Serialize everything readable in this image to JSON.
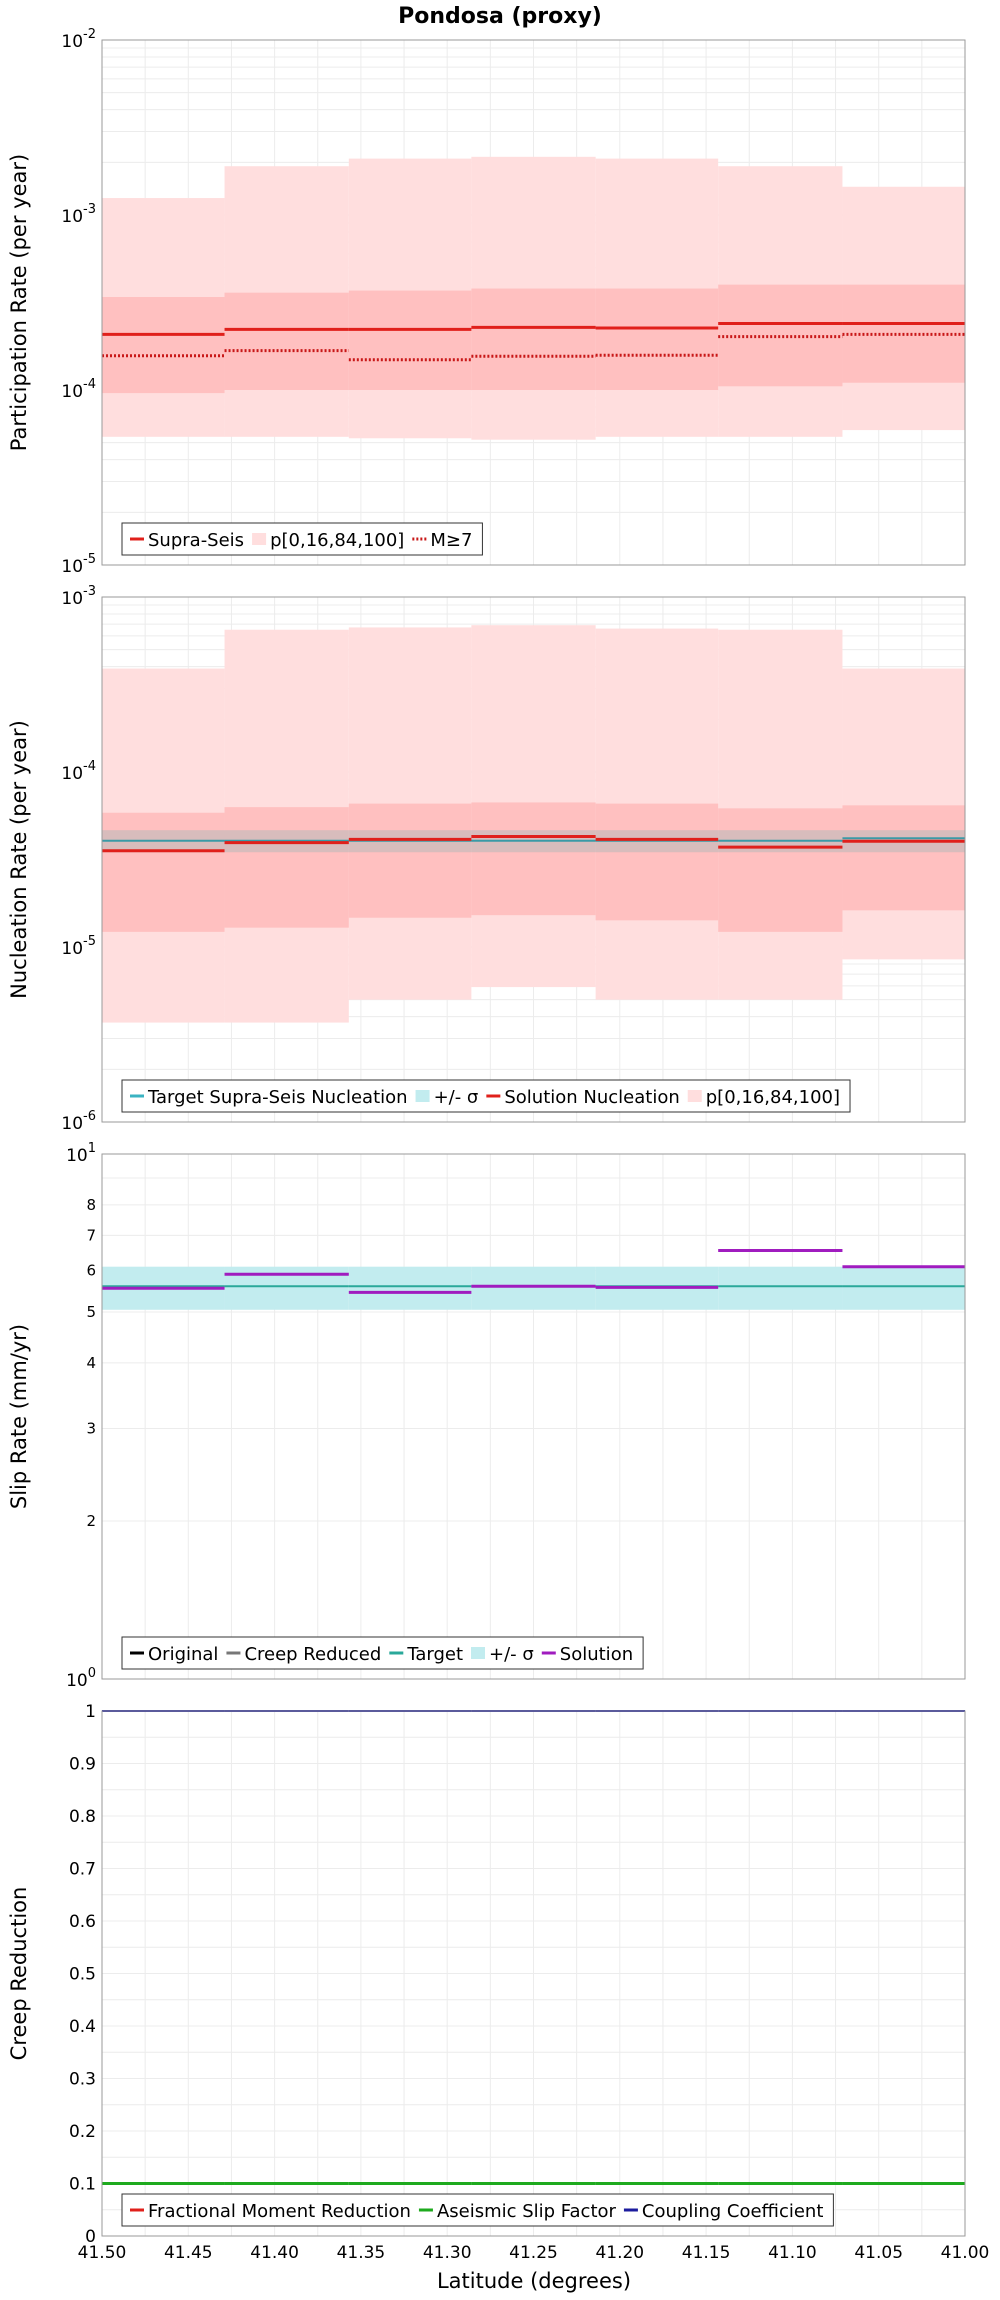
{
  "title": "Pondosa (proxy)",
  "xlabel": "Latitude (degrees)",
  "chart_data": [
    {
      "type": "line",
      "id": "participation",
      "ylabel": "Participation Rate (per year)",
      "yscale": "log",
      "ylim": [
        1e-05,
        0.01
      ],
      "y_ticks": [
        {
          "base": "10",
          "exp": "-5",
          "value": 1e-05
        },
        {
          "base": "10",
          "exp": "-4",
          "value": 0.0001
        },
        {
          "base": "10",
          "exp": "-3",
          "value": 0.001
        },
        {
          "base": "10",
          "exp": "-2",
          "value": 0.01
        }
      ],
      "xlim": [
        41.5,
        41.0
      ],
      "x_edges": [
        41.5,
        41.429,
        41.357,
        41.286,
        41.214,
        41.143,
        41.071,
        41.0
      ],
      "bands": [
        {
          "name": "p[0,16,84,100]",
          "color": "#ffdede",
          "lower": [
            5.4e-05,
            5.4e-05,
            5.3e-05,
            5.2e-05,
            5.4e-05,
            5.4e-05,
            5.9e-05
          ],
          "upper": [
            0.00125,
            0.0019,
            0.0021,
            0.00215,
            0.0021,
            0.0019,
            0.00145
          ]
        },
        {
          "name": "",
          "color": "#ffc0c0",
          "lower": [
            9.6e-05,
            0.0001,
            0.0001,
            0.0001,
            0.0001,
            0.000105,
            0.00011
          ],
          "upper": [
            0.00034,
            0.00036,
            0.00037,
            0.00038,
            0.00038,
            0.0004,
            0.0004
          ]
        }
      ],
      "series": [
        {
          "name": "Supra-Seis",
          "color": "#e0201b",
          "style": "solid",
          "values": [
            0.000208,
            0.000222,
            0.000222,
            0.000228,
            0.000226,
            0.00024,
            0.00024
          ]
        },
        {
          "name": "M≥7",
          "color": "#c81818",
          "style": "dotted",
          "values": [
            0.000157,
            0.000168,
            0.000149,
            0.000156,
            0.000158,
            0.000202,
            0.000208
          ]
        }
      ],
      "legend": [
        {
          "label": "Supra-Seis",
          "kind": "line",
          "color": "#e0201b",
          "style": "solid"
        },
        {
          "label": "p[0,16,84,100]",
          "kind": "box",
          "color": "#ffdede"
        },
        {
          "label": "M≥7",
          "kind": "line",
          "color": "#c81818",
          "style": "dotted"
        }
      ]
    },
    {
      "type": "line",
      "id": "nucleation",
      "ylabel": "Nucleation Rate (per year)",
      "yscale": "log",
      "ylim": [
        1e-06,
        0.001
      ],
      "y_ticks": [
        {
          "base": "10",
          "exp": "-6",
          "value": 1e-06
        },
        {
          "base": "10",
          "exp": "-5",
          "value": 1e-05
        },
        {
          "base": "10",
          "exp": "-4",
          "value": 0.0001
        },
        {
          "base": "10",
          "exp": "-3",
          "value": 0.001
        }
      ],
      "xlim": [
        41.5,
        41.0
      ],
      "x_edges": [
        41.5,
        41.429,
        41.357,
        41.286,
        41.214,
        41.143,
        41.071,
        41.0
      ],
      "bands": [
        {
          "name": "p[0,16,84,100]",
          "color": "#ffdede",
          "lower": [
            3.7e-06,
            3.7e-06,
            5e-06,
            5.9e-06,
            5e-06,
            5e-06,
            8.5e-06
          ],
          "upper": [
            0.00039,
            0.00065,
            0.00067,
            0.00069,
            0.00066,
            0.00065,
            0.00039
          ]
        },
        {
          "name": "",
          "color": "#ffc0c0",
          "lower": [
            1.22e-05,
            1.29e-05,
            1.47e-05,
            1.52e-05,
            1.42e-05,
            1.22e-05,
            1.62e-05
          ],
          "upper": [
            5.85e-05,
            6.3e-05,
            6.6e-05,
            6.7e-05,
            6.6e-05,
            6.2e-05,
            6.45e-05
          ]
        },
        {
          "name": "+/- σ",
          "color": "#b8b8b8",
          "opacity": 0.55,
          "lower": [
            3.48e-05,
            3.48e-05,
            3.48e-05,
            3.48e-05,
            3.48e-05,
            3.48e-05,
            3.48e-05
          ],
          "upper": [
            4.65e-05,
            4.65e-05,
            4.65e-05,
            4.65e-05,
            4.65e-05,
            4.65e-05,
            4.65e-05
          ]
        }
      ],
      "series": [
        {
          "name": "Target Supra-Seis Nucleation",
          "color": "#3a9aa6",
          "style": "solid",
          "width": 2,
          "values": [
            4.05e-05,
            4.05e-05,
            4.05e-05,
            4.05e-05,
            4.05e-05,
            4.05e-05,
            4.18e-05
          ]
        },
        {
          "name": "Solution Nucleation",
          "color": "#e0201b",
          "style": "solid",
          "width": 3,
          "values": [
            3.55e-05,
            3.95e-05,
            4.12e-05,
            4.28e-05,
            4.12e-05,
            3.72e-05,
            4.02e-05
          ]
        }
      ],
      "legend": [
        {
          "label": "Target Supra-Seis Nucleation",
          "kind": "line",
          "color": "#3ab3c2",
          "style": "solid"
        },
        {
          "label": "+/- σ",
          "kind": "box",
          "color": "#c2ecef"
        },
        {
          "label": "Solution Nucleation",
          "kind": "line",
          "color": "#e0201b",
          "style": "solid"
        },
        {
          "label": "p[0,16,84,100]",
          "kind": "box",
          "color": "#ffdede"
        }
      ]
    },
    {
      "type": "line",
      "id": "sliprate",
      "ylabel": "Slip Rate (mm/yr)",
      "yscale": "log",
      "ylim": [
        1,
        10
      ],
      "y_ticks": [
        {
          "base": "10",
          "exp": "1",
          "value": 10
        },
        {
          "base": "10",
          "exp": "0",
          "value": 1
        }
      ],
      "y_minor_labels": [
        {
          "label": "8",
          "value": 8
        },
        {
          "label": "7",
          "value": 7
        },
        {
          "label": "6",
          "value": 6
        },
        {
          "label": "5",
          "value": 5
        },
        {
          "label": "4",
          "value": 4
        },
        {
          "label": "3",
          "value": 3
        },
        {
          "label": "2",
          "value": 2
        }
      ],
      "xlim": [
        41.5,
        41.0
      ],
      "x_edges": [
        41.5,
        41.429,
        41.357,
        41.286,
        41.214,
        41.143,
        41.071,
        41.0
      ],
      "bands": [
        {
          "name": "+/- σ",
          "color": "#c2ecef",
          "lower": [
            5.05,
            5.05,
            5.05,
            5.05,
            5.05,
            5.05,
            5.05
          ],
          "upper": [
            6.1,
            6.1,
            6.1,
            6.1,
            6.1,
            6.1,
            6.1
          ]
        }
      ],
      "series": [
        {
          "name": "Target",
          "color": "#2aa89a",
          "style": "solid",
          "width": 2,
          "values": [
            5.6,
            5.6,
            5.6,
            5.6,
            5.6,
            5.6,
            5.6
          ]
        },
        {
          "name": "Solution",
          "color": "#a01cbf",
          "style": "solid",
          "width": 3,
          "values": [
            5.55,
            5.9,
            5.45,
            5.6,
            5.57,
            6.55,
            6.1
          ]
        }
      ],
      "legend": [
        {
          "label": "Original",
          "kind": "line",
          "color": "#000000",
          "style": "solid"
        },
        {
          "label": "Creep Reduced",
          "kind": "line",
          "color": "#777777",
          "style": "solid"
        },
        {
          "label": "Target",
          "kind": "line",
          "color": "#2aa89a",
          "style": "solid"
        },
        {
          "label": "+/- σ",
          "kind": "box",
          "color": "#c2ecef"
        },
        {
          "label": "Solution",
          "kind": "line",
          "color": "#a01cbf",
          "style": "solid"
        }
      ]
    },
    {
      "type": "line",
      "id": "creep",
      "ylabel": "Creep Reduction",
      "yscale": "linear",
      "ylim": [
        0,
        1
      ],
      "y_ticks_linear": [
        "0",
        "0.1",
        "0.2",
        "0.3",
        "0.4",
        "0.5",
        "0.6",
        "0.7",
        "0.8",
        "0.9",
        "1"
      ],
      "xlim": [
        41.5,
        41.0
      ],
      "x_ticks": [
        "41.50",
        "41.45",
        "41.40",
        "41.35",
        "41.30",
        "41.25",
        "41.20",
        "41.15",
        "41.10",
        "41.05",
        "41.00"
      ],
      "x_edges": [
        41.5,
        41.429,
        41.357,
        41.286,
        41.214,
        41.143,
        41.071,
        41.0
      ],
      "bands": [],
      "series": [
        {
          "name": "Coupling Coefficient",
          "color": "#1c1c9e",
          "style": "solid",
          "width": 2,
          "values": [
            1,
            1,
            1,
            1,
            1,
            1,
            1
          ]
        },
        {
          "name": "Aseismic Slip Factor",
          "color": "#1eaa1e",
          "style": "solid",
          "width": 3,
          "values": [
            0.1,
            0.1,
            0.1,
            0.1,
            0.1,
            0.1,
            0.1
          ]
        }
      ],
      "legend": [
        {
          "label": "Fractional Moment Reduction",
          "kind": "line",
          "color": "#e0201b",
          "style": "solid"
        },
        {
          "label": "Aseismic Slip Factor",
          "kind": "line",
          "color": "#1eaa1e",
          "style": "solid"
        },
        {
          "label": "Coupling Coefficient",
          "kind": "line",
          "color": "#1c1c9e",
          "style": "solid"
        }
      ]
    }
  ]
}
